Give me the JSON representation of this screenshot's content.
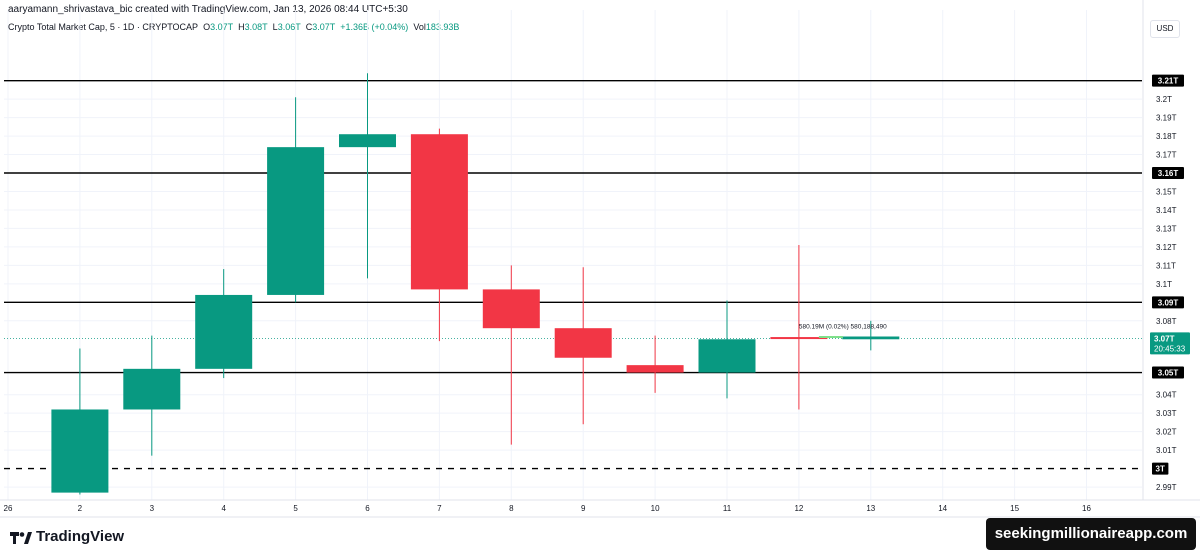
{
  "header": {
    "credit": "aaryamann_shrivastava_bic created with TradingView.com, Jan 13, 2026 08:44 UTC+5:30",
    "symbol": "Crypto Total Market Cap, 5 · 1D · CRYPTOCAP",
    "o_label": "O",
    "o_value": "3.07T",
    "h_label": "H",
    "h_value": "3.08T",
    "l_label": "L",
    "l_value": "3.06T",
    "c_label": "C",
    "c_value": "3.07T",
    "change": "+1.36B (+0.04%)",
    "vol_label": "Vol",
    "vol_value": "183.93B"
  },
  "currency": "USD",
  "footer": {
    "logo_text": "TradingView",
    "watermark": "seekingmillionaireapp.com"
  },
  "colors": {
    "up": "#089981",
    "down": "#f23645",
    "grid": "#f0f3fa",
    "line": "#000000"
  },
  "chart_data": {
    "type": "candlestick",
    "x_ticks": [
      "26",
      "2",
      "3",
      "4",
      "5",
      "6",
      "7",
      "8",
      "9",
      "10",
      "11",
      "12",
      "13",
      "14",
      "15",
      "16"
    ],
    "ylim": [
      2.983,
      3.232
    ],
    "y_ticks": [
      "3.2T",
      "3.19T",
      "3.18T",
      "3.17T",
      "3.15T",
      "3.14T",
      "3.13T",
      "3.12T",
      "3.11T",
      "3.1T",
      "3.08T",
      "3.04T",
      "3.03T",
      "3.02T",
      "3.01T",
      "2.99T"
    ],
    "y_tick_values": [
      3.2,
      3.19,
      3.18,
      3.17,
      3.15,
      3.14,
      3.13,
      3.12,
      3.11,
      3.1,
      3.08,
      3.04,
      3.03,
      3.02,
      3.01,
      2.99
    ],
    "candles": [
      {
        "date": "2",
        "open": 2.987,
        "high": 3.065,
        "low": 2.986,
        "close": 3.032
      },
      {
        "date": "3",
        "open": 3.032,
        "high": 3.072,
        "low": 3.007,
        "close": 3.054
      },
      {
        "date": "4",
        "open": 3.054,
        "high": 3.108,
        "low": 3.049,
        "close": 3.094
      },
      {
        "date": "5",
        "open": 3.094,
        "high": 3.201,
        "low": 3.09,
        "close": 3.174
      },
      {
        "date": "6",
        "open": 3.174,
        "high": 3.214,
        "low": 3.103,
        "close": 3.181
      },
      {
        "date": "7",
        "open": 3.181,
        "high": 3.184,
        "low": 3.069,
        "close": 3.097
      },
      {
        "date": "8",
        "open": 3.097,
        "high": 3.11,
        "low": 3.013,
        "close": 3.076
      },
      {
        "date": "9",
        "open": 3.076,
        "high": 3.109,
        "low": 3.024,
        "close": 3.06
      },
      {
        "date": "10",
        "open": 3.056,
        "high": 3.072,
        "low": 3.041,
        "close": 3.052
      },
      {
        "date": "11",
        "open": 3.052,
        "high": 3.091,
        "low": 3.038,
        "close": 3.07
      },
      {
        "date": "12",
        "open": 3.0712,
        "high": 3.121,
        "low": 3.032,
        "close": 3.0702
      },
      {
        "date": "13",
        "open": 3.07,
        "high": 3.08,
        "low": 3.064,
        "close": 3.0715
      }
    ],
    "horizontal_levels": [
      {
        "value": 3.21,
        "label": "3.21T",
        "style": "solid"
      },
      {
        "value": 3.16,
        "label": "3.16T",
        "style": "solid"
      },
      {
        "value": 3.09,
        "label": "3.09T",
        "style": "solid"
      },
      {
        "value": 3.052,
        "label": "3.05T",
        "style": "solid"
      },
      {
        "value": 3.0,
        "label": "3T",
        "style": "dashed"
      }
    ],
    "current_price": {
      "value": 3.0705,
      "label": "3.07T",
      "countdown": "20:45:33"
    },
    "annotation": {
      "text": "580.19M (0.02%) 580,188,490",
      "date": "12.5",
      "value": 3.077
    }
  }
}
